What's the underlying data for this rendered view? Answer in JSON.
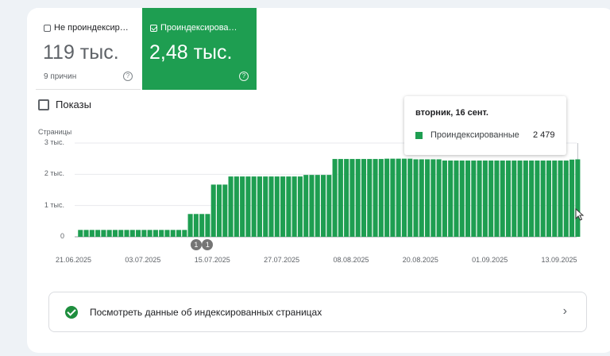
{
  "tiles": [
    {
      "label": "Не проиндексир…",
      "value": "119 тыс.",
      "subtitle": "9 причин",
      "checked": false
    },
    {
      "label": "Проиндексирова…",
      "value": "2,48 тыс.",
      "checked": true
    }
  ],
  "help_glyph": "?",
  "toggle": {
    "label": "Показы",
    "checked": false
  },
  "tooltip": {
    "date": "вторник, 16 сент.",
    "series": "Проиндексированные",
    "value": "2 479"
  },
  "annotations": [
    {
      "label": "1",
      "date": "12.07.2025"
    },
    {
      "label": "1",
      "date": "14.07.2025"
    }
  ],
  "link": {
    "label": "Посмотреть данные об индексированных страницах",
    "chevron": "›"
  },
  "colors": {
    "accent": "#1e9e51",
    "bar": "#1e9e51"
  },
  "chart_data": {
    "type": "bar",
    "ylabel": "Страницы",
    "ylim": [
      0,
      3000
    ],
    "y_ticks": [
      "0",
      "1 тыс.",
      "2 тыс.",
      "3 тыс."
    ],
    "x_ticks": [
      "21.06.2025",
      "03.07.2025",
      "15.07.2025",
      "27.07.2025",
      "08.08.2025",
      "20.08.2025",
      "01.09.2025",
      "13.09.2025"
    ],
    "x_start": "22.06.2025",
    "x_end": "16.09.2025",
    "series": [
      {
        "name": "Проиндексированные",
        "segments": [
          {
            "from": "22.06.2025",
            "to": "10.07.2025",
            "value": 220
          },
          {
            "from": "11.07.2025",
            "to": "14.07.2025",
            "value": 730
          },
          {
            "from": "15.07.2025",
            "to": "17.07.2025",
            "value": 1670
          },
          {
            "from": "18.07.2025",
            "to": "30.07.2025",
            "value": 1930
          },
          {
            "from": "31.07.2025",
            "to": "04.08.2025",
            "value": 1980
          },
          {
            "from": "05.08.2025",
            "to": "13.08.2025",
            "value": 2490
          },
          {
            "from": "14.08.2025",
            "to": "18.08.2025",
            "value": 2500
          },
          {
            "from": "19.08.2025",
            "to": "23.08.2025",
            "value": 2480
          },
          {
            "from": "24.08.2025",
            "to": "14.09.2025",
            "value": 2440
          },
          {
            "from": "15.09.2025",
            "to": "15.09.2025",
            "value": 2470
          },
          {
            "from": "16.09.2025",
            "to": "16.09.2025",
            "value": 2479
          }
        ]
      }
    ]
  }
}
